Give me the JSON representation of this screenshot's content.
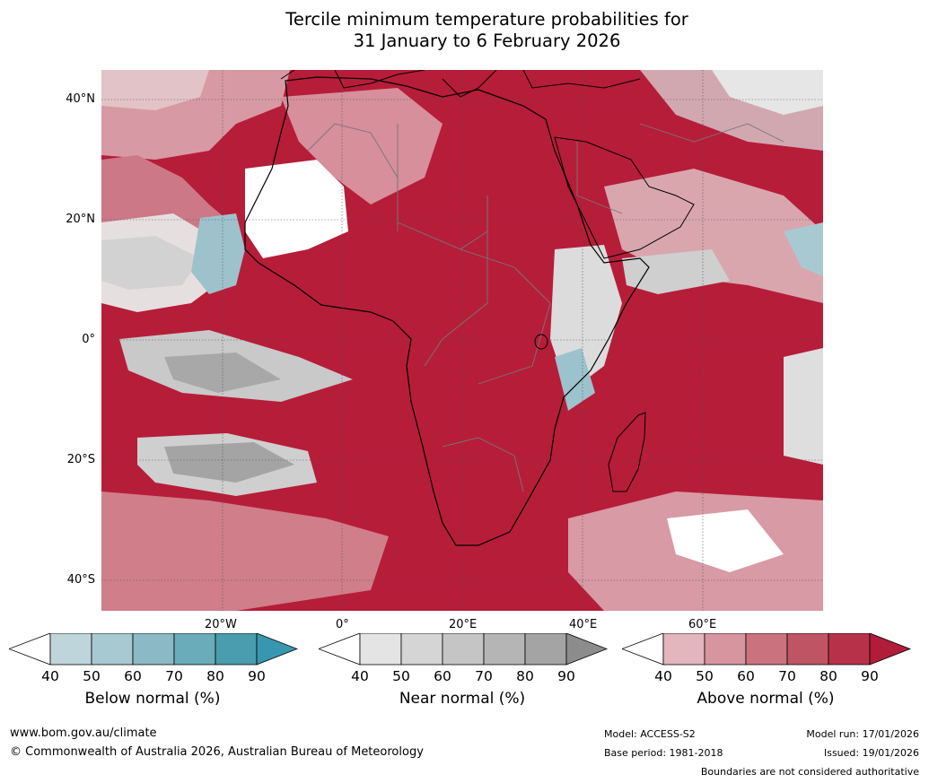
{
  "title": {
    "line1": "Tercile minimum temperature probabilities for",
    "line2": "31 January to 6 February 2026"
  },
  "map": {
    "lat_labels": [
      "40°N",
      "20°N",
      "0°",
      "20°S",
      "40°S"
    ],
    "lon_labels": [
      "20°W",
      "0°",
      "20°E",
      "40°E",
      "60°E"
    ]
  },
  "colorbars": [
    {
      "label": "Below normal (%)",
      "ticks": [
        "40",
        "50",
        "60",
        "70",
        "80",
        "90"
      ],
      "colors": [
        "#bfd5dc",
        "#a7c9d1",
        "#8bb9c5",
        "#6aacb9",
        "#4a9caf",
        "#3897b0"
      ]
    },
    {
      "label": "Near normal (%)",
      "ticks": [
        "40",
        "50",
        "60",
        "70",
        "80",
        "90"
      ],
      "colors": [
        "#e4e4e4",
        "#d5d5d5",
        "#c5c5c5",
        "#b5b5b5",
        "#a4a4a4",
        "#8c8c8c"
      ]
    },
    {
      "label": "Above normal (%)",
      "ticks": [
        "40",
        "50",
        "60",
        "70",
        "80",
        "90"
      ],
      "colors": [
        "#e3b5bd",
        "#d6959f",
        "#ca737f",
        "#bf5465",
        "#b73249",
        "#b01c39"
      ]
    }
  ],
  "footer": {
    "url": "www.bom.gov.au/climate",
    "copyright": "© Commonwealth of Australia 2026, Australian Bureau of Meteorology",
    "model": "Model: ACCESS-S2",
    "base_period": "Base period: 1981-2018",
    "model_run": "Model run: 17/01/2026",
    "issued": "Issued: 19/01/2026",
    "disclaimer": "Boundaries are not considered authoritative"
  }
}
